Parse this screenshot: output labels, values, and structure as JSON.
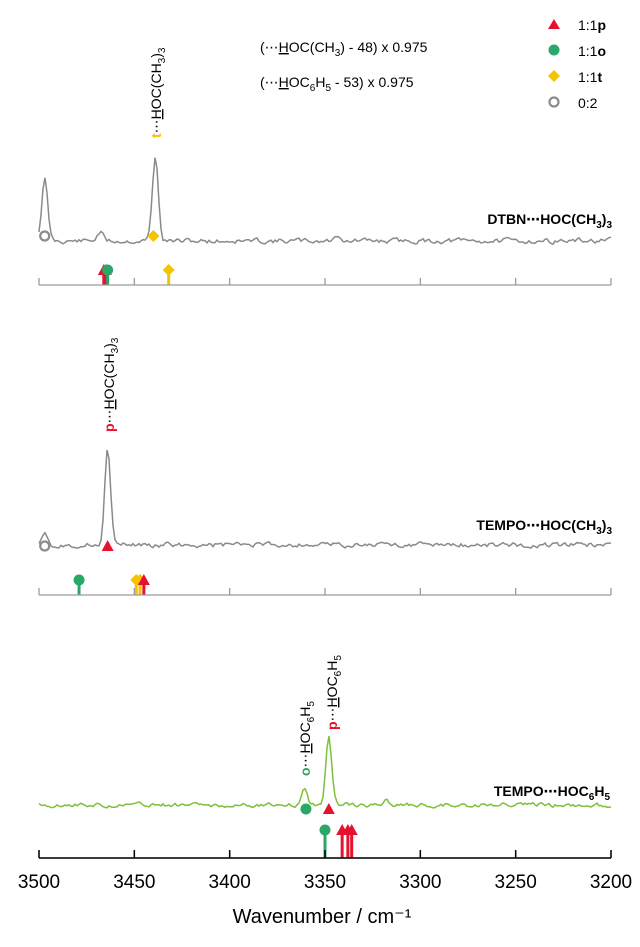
{
  "chart_data": {
    "type": "line",
    "xlabel": "Wavenumber / cm⁻¹",
    "xlim": [
      3500,
      3200
    ],
    "x_ticks": [
      "3500",
      "3450",
      "3400",
      "3350",
      "3300",
      "3250",
      "3200"
    ],
    "colors": {
      "p": "#e8112d",
      "o": "#2aa86a",
      "t": "#f5c400",
      "unassigned": "#8c8c8c",
      "trace_aliphatic": "#8a8a8a",
      "trace_phenol": "#7fbf3a"
    },
    "legend": {
      "placement": "top-right",
      "entries": [
        {
          "label": "1:1p",
          "marker": "triangle",
          "color": "#e8112d"
        },
        {
          "label": "1:1o",
          "marker": "circle",
          "color": "#2aa86a"
        },
        {
          "label": "1:1t",
          "marker": "diamond",
          "color": "#f5c400"
        },
        {
          "label": "0:2",
          "marker": "open-circle",
          "color": "#8c8c8c"
        }
      ]
    },
    "notes": [
      "(⋯HOC(CH3) - 48) x 0.975",
      "(⋯HOC6H5 - 53) x 0.975"
    ],
    "panels": [
      {
        "label": "DTBN⋯HOC(CH3)3",
        "trace_color": "#8a8a8a",
        "peaks": [
          {
            "x": 3497,
            "height": 0.62
          },
          {
            "x": 3468,
            "height": 0.09
          },
          {
            "x": 3439,
            "height": 0.84
          },
          {
            "x": 3343,
            "height": 0.06
          }
        ],
        "peak_annotations": [
          {
            "x": 3440,
            "text": "←⋯HOC(CH3)3",
            "color": "#f5c400"
          }
        ],
        "observed_markers": [
          {
            "x": 3497,
            "type": "open-circle"
          },
          {
            "x": 3440,
            "type": "diamond"
          }
        ],
        "calc_markers": [
          {
            "x": 3466,
            "type": "triangle"
          },
          {
            "x": 3465,
            "type": "triangle"
          },
          {
            "x": 3464,
            "type": "circle"
          },
          {
            "x": 3432,
            "type": "diamond"
          }
        ]
      },
      {
        "label": "TEMPO⋯HOC(CH3)3",
        "trace_color": "#8a8a8a",
        "peaks": [
          {
            "x": 3497,
            "height": 0.14
          },
          {
            "x": 3464,
            "height": 0.92
          }
        ],
        "peak_annotations": [
          {
            "x": 3464,
            "text": "p⋯HOC(CH3)3",
            "color": "#e8112d"
          }
        ],
        "observed_markers": [
          {
            "x": 3497,
            "type": "open-circle"
          },
          {
            "x": 3464,
            "type": "triangle"
          }
        ],
        "calc_markers": [
          {
            "x": 3479,
            "type": "circle"
          },
          {
            "x": 3449,
            "type": "diamond"
          },
          {
            "x": 3447,
            "type": "diamond"
          },
          {
            "x": 3445,
            "type": "triangle"
          }
        ]
      },
      {
        "label": "TEMPO⋯HOC6H5",
        "trace_color": "#7fbf3a",
        "peaks": [
          {
            "x": 3361,
            "height": 0.22
          },
          {
            "x": 3348,
            "height": 0.85
          },
          {
            "x": 3318,
            "height": 0.08
          }
        ],
        "peak_annotations": [
          {
            "x": 3360,
            "text": "o⋯HOC6H5",
            "color": "#2aa86a"
          },
          {
            "x": 3348,
            "text": "p⋯HOC6H5",
            "color": "#e8112d"
          }
        ],
        "observed_markers": [
          {
            "x": 3360,
            "type": "circle"
          },
          {
            "x": 3348,
            "type": "triangle"
          }
        ],
        "calc_markers": [
          {
            "x": 3350,
            "type": "circle"
          },
          {
            "x": 3341,
            "type": "triangle"
          },
          {
            "x": 3338,
            "type": "triangle"
          },
          {
            "x": 3336,
            "type": "triangle"
          }
        ]
      }
    ]
  }
}
